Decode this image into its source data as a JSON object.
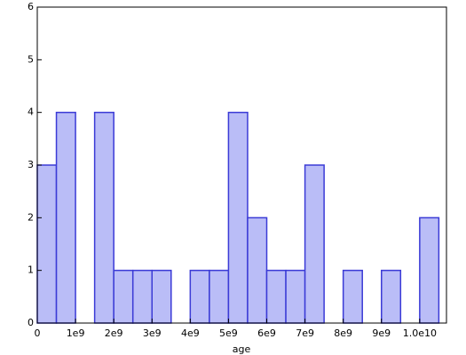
{
  "chart_data": {
    "type": "histogram",
    "x_label": "age",
    "bins": [
      0,
      500000000,
      1000000000,
      1500000000,
      2000000000,
      2500000000,
      3000000000,
      3500000000,
      4000000000,
      4500000000,
      5000000000,
      5500000000,
      6000000000,
      6500000000,
      7000000000,
      7500000000,
      8000000000,
      8500000000,
      9000000000,
      9500000000,
      10000000000,
      10500000000
    ],
    "values": [
      3,
      4,
      0,
      4,
      1,
      1,
      1,
      0,
      1,
      1,
      4,
      2,
      1,
      1,
      3,
      0,
      1,
      0,
      1,
      0,
      2
    ],
    "color": "#babdf7",
    "edge_color": "#3b3bd6",
    "xlim": [
      0,
      10700000000
    ],
    "xticks": [
      0,
      {
        "value": 1000000000,
        "label": "1e9"
      },
      {
        "value": 2000000000,
        "label": "2e9"
      },
      {
        "value": 3000000000,
        "label": "3e9"
      },
      {
        "value": 4000000000,
        "label": "4e9"
      },
      {
        "value": 5000000000,
        "label": "5e9"
      },
      {
        "value": 6000000000,
        "label": "6e9"
      },
      {
        "value": 7000000000,
        "label": "7e9"
      },
      {
        "value": 8000000000,
        "label": "8e9"
      },
      {
        "value": 9000000000,
        "label": "9e9"
      },
      {
        "value": 10000000000,
        "label": "1.0e10"
      }
    ],
    "ylim": [
      0,
      6
    ],
    "yticks": [
      0,
      1,
      2,
      3,
      4,
      5,
      6
    ]
  }
}
